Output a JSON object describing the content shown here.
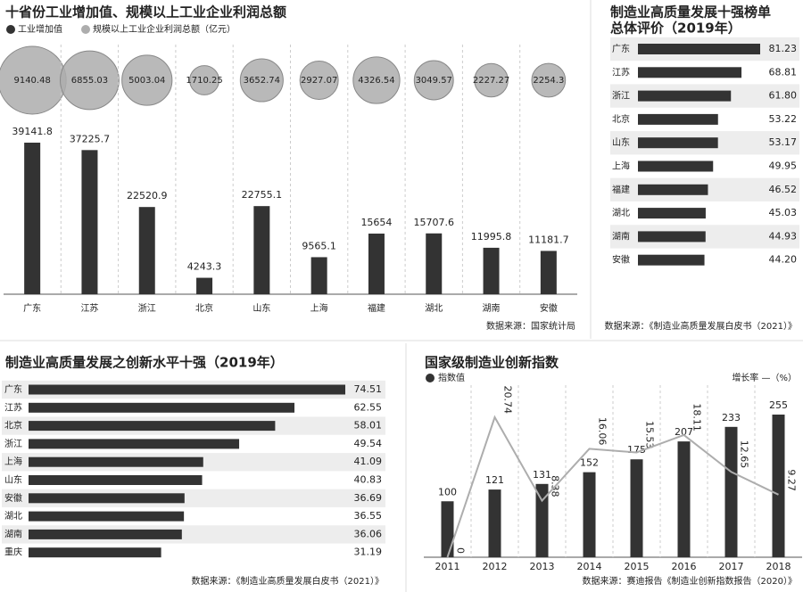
{
  "chart_data": [
    {
      "type": "bubblebar",
      "title": "十省份工业增加值、规模以上工业企业利润总额",
      "categories": [
        "广东",
        "江苏",
        "浙江",
        "北京",
        "山东",
        "上海",
        "福建",
        "湖北",
        "湖南",
        "安徽"
      ],
      "series": [
        {
          "name": "工业增加值",
          "color": "#333333",
          "values": [
            39141.8,
            37225.7,
            22520.9,
            4243.3,
            22755.1,
            9565.1,
            15654,
            15707.6,
            11995.8,
            11181.7
          ]
        },
        {
          "name": "规模以上工业企业利润总额（亿元）",
          "color": "#adadad",
          "values": [
            9140.48,
            6855.03,
            5003.04,
            1710.25,
            3652.74,
            2927.07,
            4326.54,
            3049.57,
            2227.27,
            2254.3
          ]
        }
      ],
      "source": "数据来源：国家统计局"
    },
    {
      "type": "hbar",
      "title": "制造业高质量发展十强榜单",
      "subtitle": "总体评价（2019年）",
      "categories": [
        "广东",
        "江苏",
        "浙江",
        "北京",
        "山东",
        "上海",
        "福建",
        "湖北",
        "湖南",
        "安徽"
      ],
      "values": [
        81.23,
        68.81,
        61.8,
        53.22,
        53.17,
        49.95,
        46.52,
        45.03,
        44.93,
        44.2
      ],
      "value_labels": [
        "81.23",
        "68.81",
        "61.80",
        "53.22",
        "53.17",
        "49.95",
        "46.52",
        "45.03",
        "44.93",
        "44.20"
      ],
      "color": "#333333",
      "source": "数据来源：《制造业高质量发展白皮书（2021）》"
    },
    {
      "type": "hbar",
      "title": "制造业高质量发展之创新水平十强（2019年）",
      "categories": [
        "广东",
        "江苏",
        "北京",
        "浙江",
        "上海",
        "山东",
        "安徽",
        "湖北",
        "湖南",
        "重庆"
      ],
      "values": [
        74.51,
        62.55,
        58.01,
        49.54,
        41.09,
        40.83,
        36.69,
        36.55,
        36.06,
        31.19
      ],
      "color": "#333333",
      "source": "数据来源：《制造业高质量发展白皮书（2021）》"
    },
    {
      "type": "barline",
      "title": "国家级制造业创新指数",
      "categories": [
        "2011",
        "2012",
        "2013",
        "2014",
        "2015",
        "2016",
        "2017",
        "2018"
      ],
      "series": [
        {
          "name": "指数值",
          "color": "#333333",
          "values": [
            100,
            121,
            131,
            152,
            175,
            207,
            233,
            255
          ]
        },
        {
          "name": "增长率 —（%）",
          "color": "#adadad",
          "values": [
            0,
            20.74,
            8.38,
            16.06,
            15.53,
            18.11,
            12.65,
            9.27
          ]
        }
      ],
      "source": "数据来源：赛迪报告《制造业创新指数报告（2020）》"
    }
  ]
}
